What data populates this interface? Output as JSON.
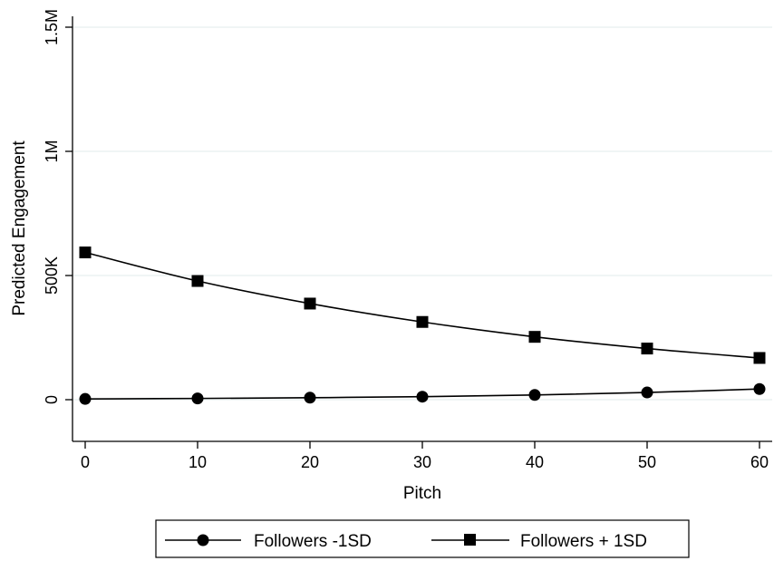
{
  "chart_data": {
    "type": "line",
    "xlabel": "Pitch",
    "ylabel": "Predicted Engagement",
    "x": [
      0,
      10,
      20,
      30,
      40,
      50,
      60
    ],
    "xlim": [
      0,
      60
    ],
    "ylim": [
      -150000,
      1500000
    ],
    "x_ticks": [
      {
        "value": 0,
        "label": "0"
      },
      {
        "value": 10,
        "label": "10"
      },
      {
        "value": 20,
        "label": "20"
      },
      {
        "value": 30,
        "label": "30"
      },
      {
        "value": 40,
        "label": "40"
      },
      {
        "value": 50,
        "label": "50"
      },
      {
        "value": 60,
        "label": "60"
      }
    ],
    "y_ticks": [
      {
        "value": 0,
        "label": "0"
      },
      {
        "value": 500000,
        "label": "500K"
      },
      {
        "value": 1000000,
        "label": "1M"
      },
      {
        "value": 1500000,
        "label": "1.5M"
      }
    ],
    "grid": true,
    "legend_position": "bottom",
    "series": [
      {
        "name": "Followers -1SD",
        "marker": "circle",
        "color": "#000000",
        "values": [
          3000,
          5000,
          8000,
          12000,
          19000,
          29000,
          43000
        ]
      },
      {
        "name": "Followers + 1SD",
        "marker": "square",
        "color": "#000000",
        "values": [
          593000,
          478000,
          387000,
          313000,
          253000,
          206000,
          168000
        ]
      }
    ]
  },
  "colors": {
    "gridline": "#e6efef",
    "line": "#000000"
  }
}
